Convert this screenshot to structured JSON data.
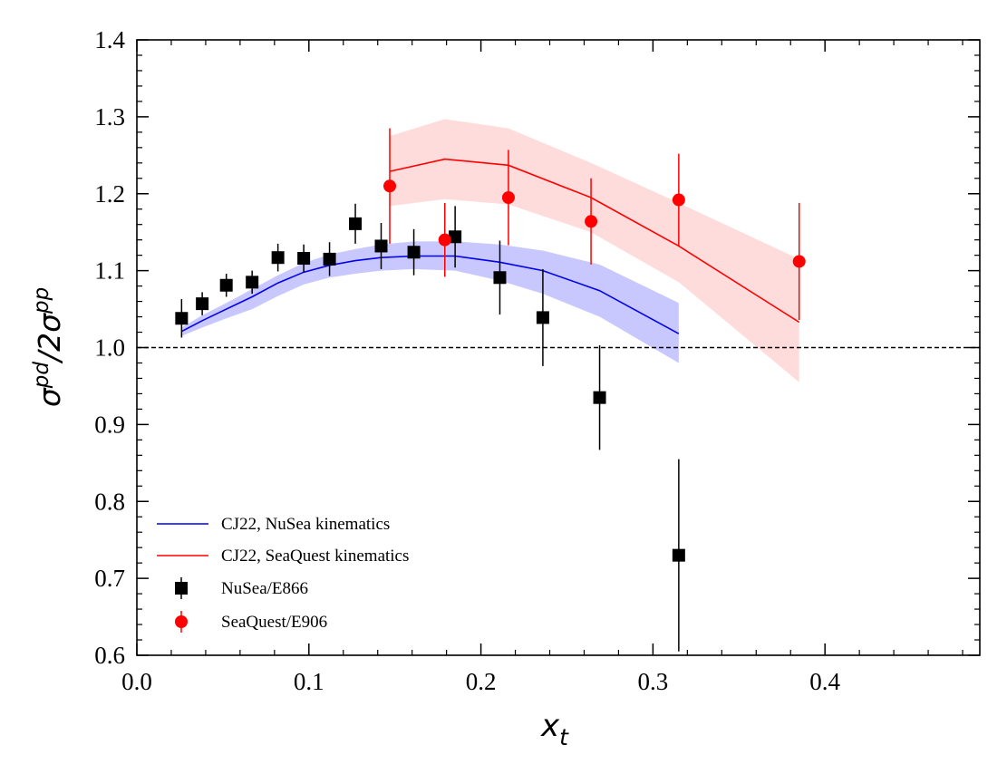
{
  "chart_data": {
    "type": "scatter",
    "xlabel": "x",
    "xlabel_sub": "t",
    "ylabel_main": "σ",
    "ylabel_sup1": "pd",
    "ylabel_mid": "/2σ",
    "ylabel_sup2": "pp",
    "xlim": [
      0.0,
      0.49
    ],
    "ylim": [
      0.6,
      1.4
    ],
    "xticks": [
      "0.0",
      "0.1",
      "0.2",
      "0.3",
      "0.4"
    ],
    "xtick_values": [
      0.0,
      0.1,
      0.2,
      0.3,
      0.4
    ],
    "yticks": [
      "0.6",
      "0.7",
      "0.8",
      "0.9",
      "1.0",
      "1.1",
      "1.2",
      "1.3",
      "1.4"
    ],
    "ytick_values": [
      0.6,
      0.7,
      0.8,
      0.9,
      1.0,
      1.1,
      1.2,
      1.3,
      1.4
    ],
    "reference_line": {
      "y": 1.0,
      "style": "dashed"
    },
    "series": [
      {
        "name": "CJ22, NuSea kinematics",
        "kind": "line-band",
        "color": "#0000ee",
        "band_color": "#c8c8ff",
        "x": [
          0.026,
          0.038,
          0.052,
          0.067,
          0.082,
          0.097,
          0.112,
          0.127,
          0.142,
          0.161,
          0.185,
          0.211,
          0.236,
          0.269,
          0.315
        ],
        "y": [
          1.021,
          1.035,
          1.05,
          1.066,
          1.084,
          1.098,
          1.107,
          1.113,
          1.117,
          1.119,
          1.119,
          1.111,
          1.1,
          1.074,
          1.018
        ],
        "y_low": [
          1.015,
          1.026,
          1.038,
          1.05,
          1.067,
          1.082,
          1.091,
          1.096,
          1.1,
          1.102,
          1.1,
          1.087,
          1.07,
          1.04,
          0.98
        ],
        "y_high": [
          1.026,
          1.042,
          1.058,
          1.076,
          1.094,
          1.11,
          1.121,
          1.128,
          1.134,
          1.138,
          1.138,
          1.134,
          1.126,
          1.108,
          1.058
        ]
      },
      {
        "name": "CJ22, SeaQuest kinematics",
        "kind": "line-band",
        "color": "#ff0000",
        "band_color": "#ffdcdc",
        "x": [
          0.147,
          0.179,
          0.216,
          0.264,
          0.315,
          0.385
        ],
        "y": [
          1.229,
          1.245,
          1.237,
          1.195,
          1.132,
          1.033
        ],
        "y_low": [
          1.184,
          1.193,
          1.186,
          1.15,
          1.085,
          0.955
        ],
        "y_high": [
          1.275,
          1.297,
          1.285,
          1.24,
          1.188,
          1.115
        ]
      },
      {
        "name": "NuSea/E866",
        "kind": "points",
        "marker": "square",
        "color": "#000000",
        "x": [
          0.026,
          0.038,
          0.052,
          0.067,
          0.082,
          0.097,
          0.112,
          0.127,
          0.142,
          0.161,
          0.185,
          0.211,
          0.236,
          0.269,
          0.315
        ],
        "y": [
          1.038,
          1.057,
          1.081,
          1.085,
          1.117,
          1.116,
          1.115,
          1.161,
          1.132,
          1.124,
          1.144,
          1.091,
          1.039,
          0.935,
          0.73
        ],
        "yerr": [
          0.025,
          0.015,
          0.015,
          0.015,
          0.018,
          0.018,
          0.022,
          0.026,
          0.03,
          0.03,
          0.04,
          0.048,
          0.063,
          0.068,
          0.125
        ]
      },
      {
        "name": "SeaQuest/E906",
        "kind": "points",
        "marker": "circle",
        "color": "#ff0000",
        "x": [
          0.147,
          0.179,
          0.216,
          0.264,
          0.315,
          0.385
        ],
        "y": [
          1.21,
          1.14,
          1.195,
          1.164,
          1.192,
          1.112
        ],
        "yerr": [
          0.075,
          0.048,
          0.062,
          0.056,
          0.06,
          0.076
        ]
      }
    ],
    "legend": {
      "placement": "lower-left",
      "entries": [
        "CJ22, NuSea kinematics",
        "CJ22, SeaQuest kinematics",
        "NuSea/E866",
        "SeaQuest/E906"
      ]
    }
  }
}
